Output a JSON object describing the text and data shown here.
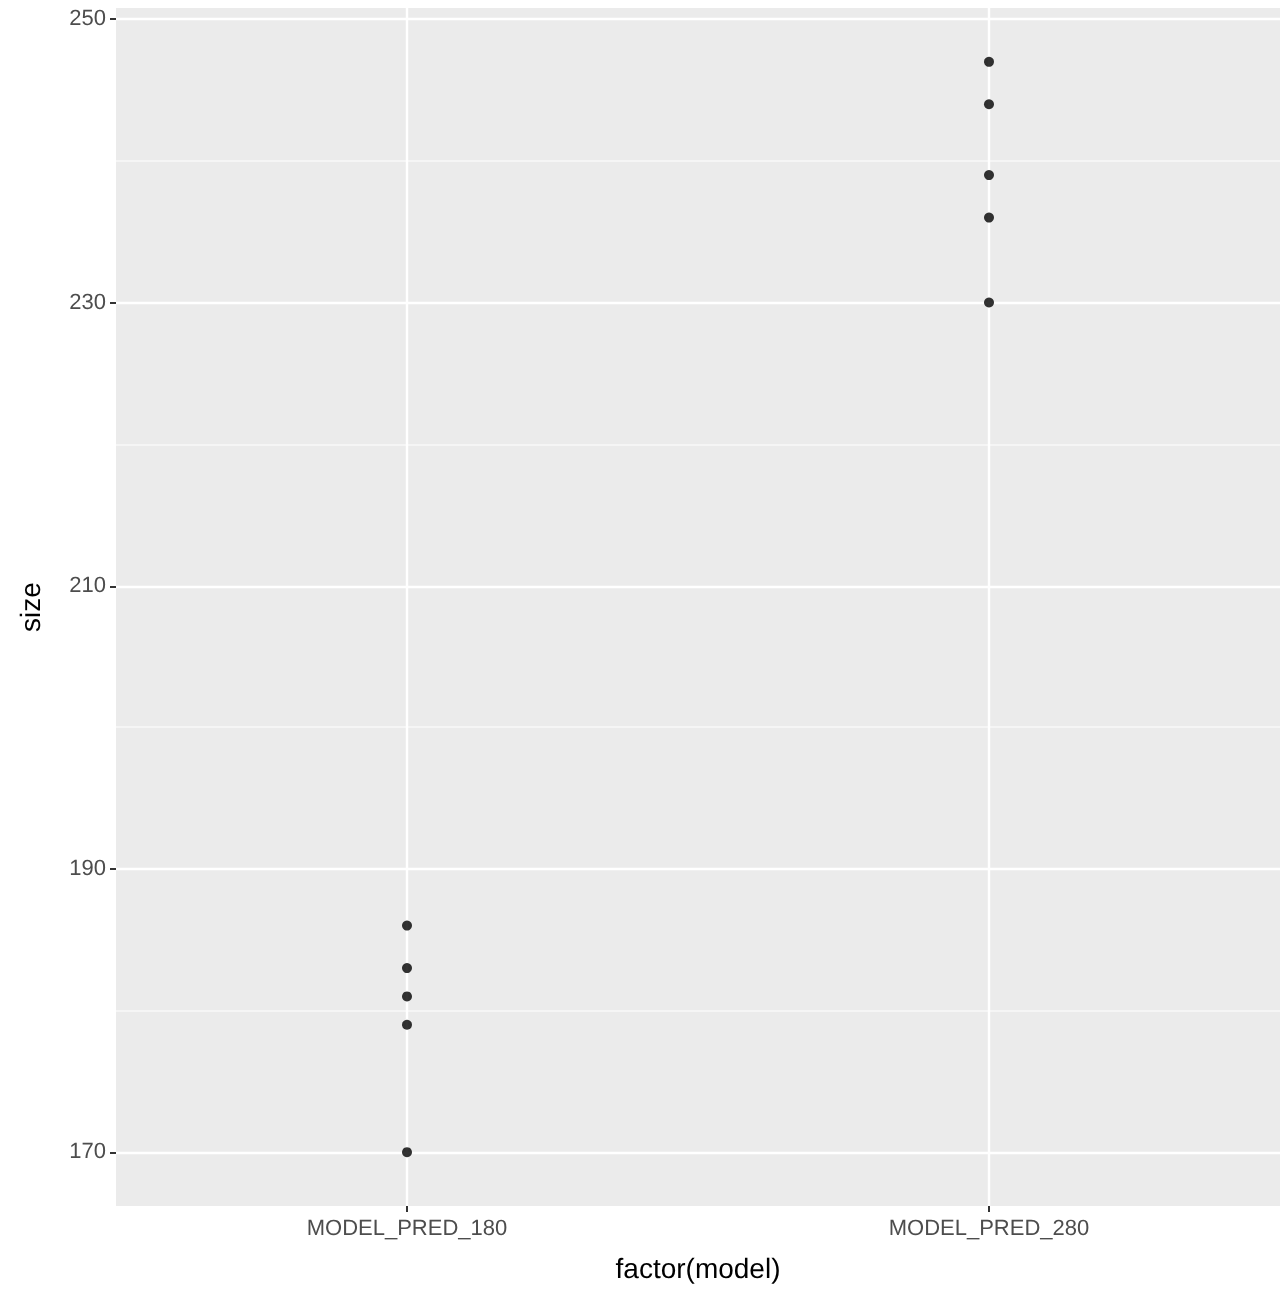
{
  "chart_data": {
    "type": "scatter",
    "xlabel": "factor(model)",
    "ylabel": "size",
    "categories": [
      "MODEL_PRED_180",
      "MODEL_PRED_280"
    ],
    "series": [
      {
        "color": "#000000",
        "x": [
          "MODEL_PRED_180",
          "MODEL_PRED_180",
          "MODEL_PRED_180",
          "MODEL_PRED_180",
          "MODEL_PRED_180",
          "MODEL_PRED_280",
          "MODEL_PRED_280",
          "MODEL_PRED_280",
          "MODEL_PRED_280",
          "MODEL_PRED_280"
        ],
        "values": [
          186,
          183,
          181,
          179,
          170,
          247,
          244,
          239,
          236,
          230
        ]
      }
    ],
    "ylim": [
      166.2,
      250.8
    ],
    "yticks": [
      170,
      {
        "value": 180,
        "label": null
      },
      190,
      {
        "value": 200,
        "label": null
      },
      210,
      {
        "value": 220,
        "label": null
      },
      230,
      {
        "value": 240,
        "label": null
      },
      250
    ],
    "grid": true,
    "marker": "circle"
  }
}
